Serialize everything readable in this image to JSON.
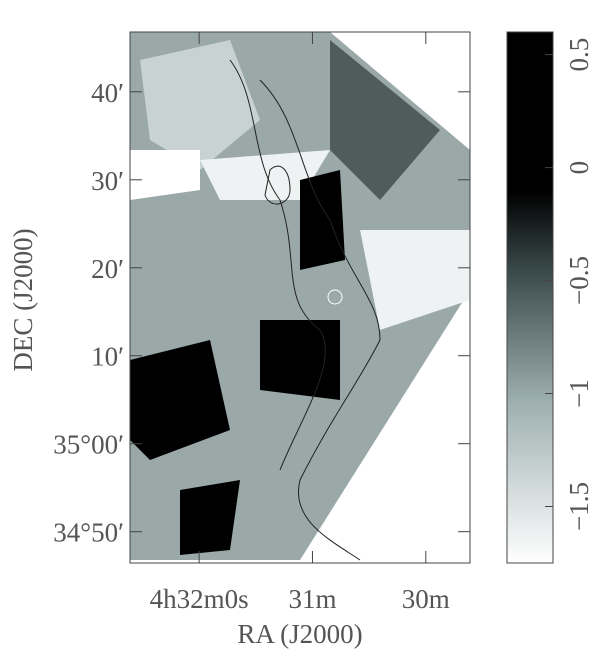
{
  "chart_data": {
    "type": "image",
    "xlabel": "RA (J2000)",
    "ylabel": "DEC (J2000)",
    "xlim": [
      32.61,
      29.61
    ],
    "xticks": [
      {
        "value": 32,
        "label": "4h32m0s"
      },
      {
        "value": 31,
        "label": "31m"
      },
      {
        "value": 30,
        "label": "30m"
      }
    ],
    "ylim": [
      34.774,
      35.78
    ],
    "yticks": [
      {
        "value": 35.6667,
        "label": "40′"
      },
      {
        "value": 35.5,
        "label": "30′"
      },
      {
        "value": 35.3333,
        "label": "20′"
      },
      {
        "value": 35.1667,
        "label": "10′"
      },
      {
        "value": 35.0,
        "label": "35°00′"
      },
      {
        "value": 34.8333,
        "label": "34°50′"
      }
    ],
    "clim": [
      -1.75,
      0.6
    ],
    "cticks": [
      0.5,
      0,
      {
        "value": -0.5,
        "label": "−0.5"
      },
      {
        "value": -1,
        "label": "−1"
      },
      {
        "value": -1.5,
        "label": "−1.5"
      }
    ]
  }
}
